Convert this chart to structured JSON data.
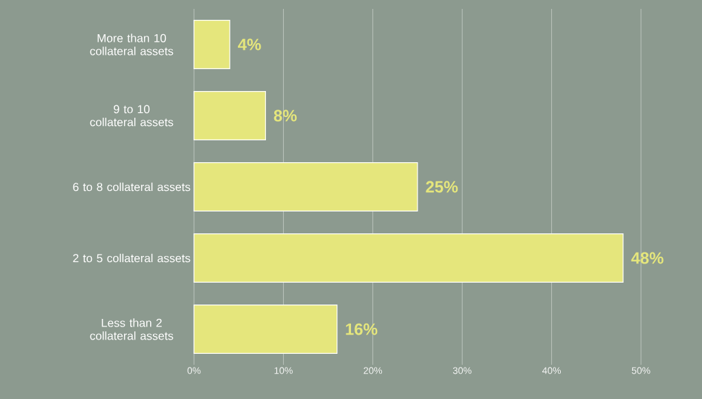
{
  "chart_data": {
    "type": "bar",
    "orientation": "horizontal",
    "categories": [
      "More than 10 collateral assets",
      "9 to 10 collateral assets",
      "6 to 8 collateral assets",
      "2 to 5 collateral assets",
      "Less than 2 collateral assets"
    ],
    "values": [
      4,
      8,
      25,
      48,
      16
    ],
    "value_labels": [
      "4%",
      "8%",
      "25%",
      "48%",
      "16%"
    ],
    "color": "#e5e67c",
    "xlim": [
      0,
      50
    ],
    "xticks": [
      {
        "value": 0,
        "label": "0%"
      },
      {
        "value": 10,
        "label": "10%"
      },
      {
        "value": 20,
        "label": "20%"
      },
      {
        "value": 30,
        "label": "30%"
      },
      {
        "value": 40,
        "label": "40%"
      },
      {
        "value": 50,
        "label": "50%"
      }
    ],
    "grid": "x"
  }
}
